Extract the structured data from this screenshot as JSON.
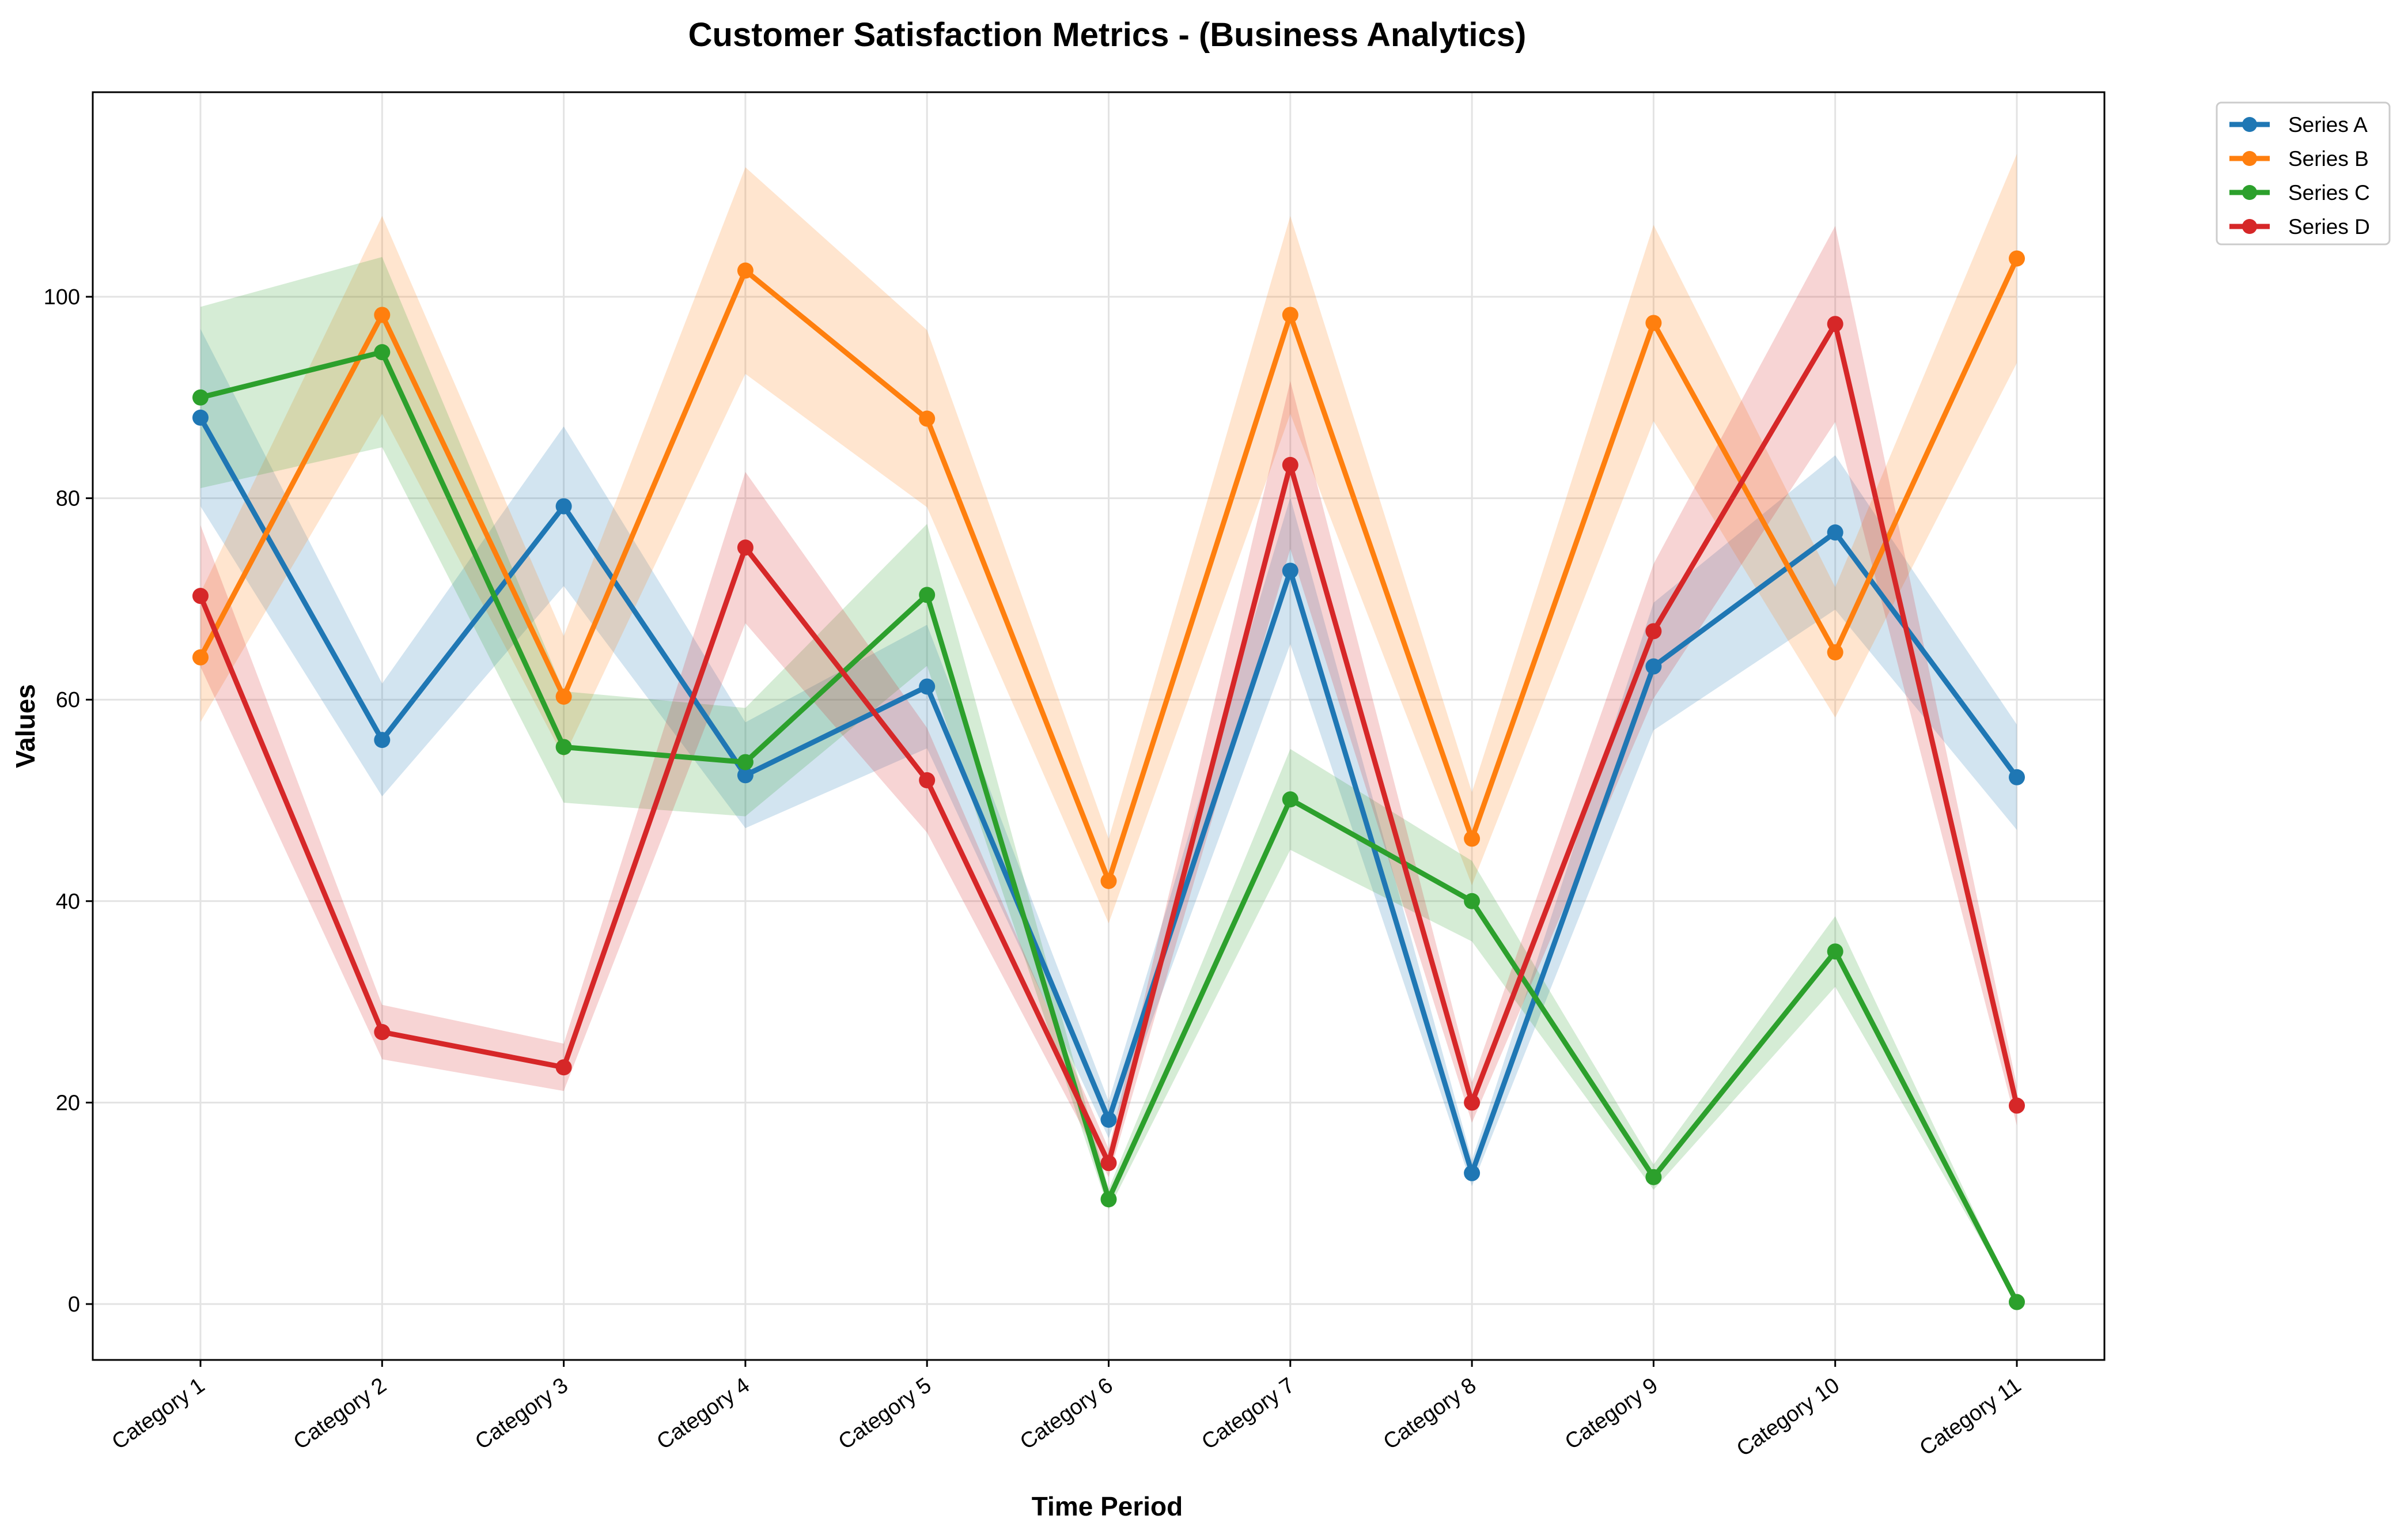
{
  "chart_data": {
    "type": "line",
    "title": "Customer Satisfaction Metrics - (Business Analytics)",
    "xlabel": "Time Period",
    "ylabel": "Values",
    "categories": [
      "Category 1",
      "Category 2",
      "Category 3",
      "Category 4",
      "Category 5",
      "Category 6",
      "Category 7",
      "Category 8",
      "Category 9",
      "Category 10",
      "Category 11"
    ],
    "ylim": [
      -5.5,
      120
    ],
    "yticks": [
      0,
      20,
      40,
      60,
      80,
      100
    ],
    "grid": true,
    "legend_position": "top-right",
    "band_width_fraction": 0.1,
    "series": [
      {
        "name": "Series A",
        "color": "#1f77b4",
        "values": [
          88,
          56,
          79.2,
          52.5,
          61.3,
          18.3,
          72.8,
          13,
          63.3,
          76.6,
          52.3
        ]
      },
      {
        "name": "Series B",
        "color": "#ff7f0e",
        "values": [
          64.2,
          98.2,
          60.3,
          102.6,
          87.9,
          42,
          98.2,
          46.2,
          97.4,
          64.7,
          103.8
        ]
      },
      {
        "name": "Series C",
        "color": "#2ca02c",
        "values": [
          90,
          94.5,
          55.3,
          53.8,
          70.4,
          10.4,
          50.1,
          40,
          12.6,
          35,
          0.2
        ]
      },
      {
        "name": "Series D",
        "color": "#d62728",
        "values": [
          70.3,
          27,
          23.5,
          75.1,
          52,
          14,
          83.3,
          20,
          66.8,
          97.3,
          19.7
        ]
      }
    ]
  }
}
